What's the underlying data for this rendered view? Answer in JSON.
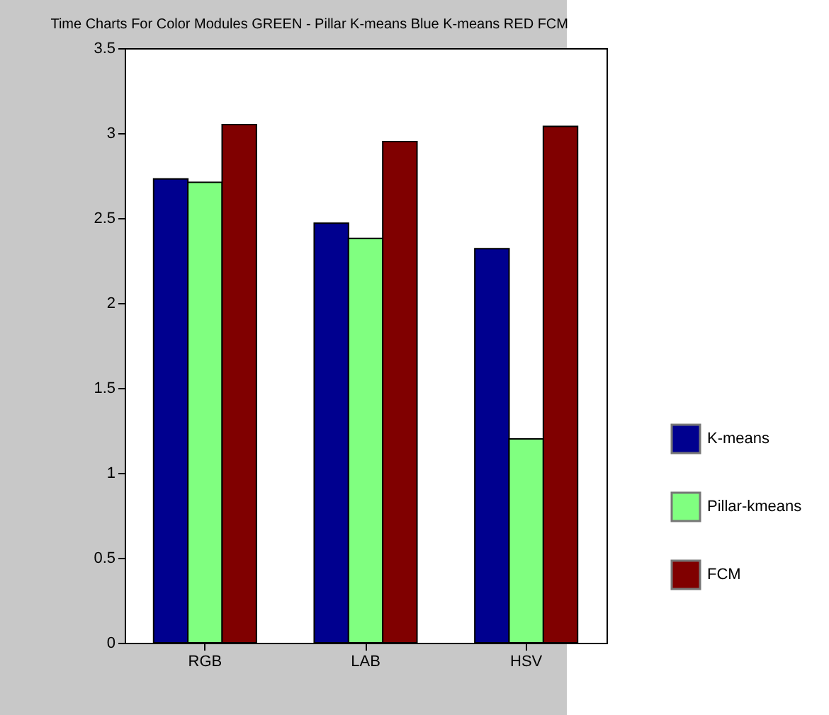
{
  "chart_data": {
    "type": "bar",
    "title": "Time Charts For Color Modules GREEN - Pillar K-means Blue K-means RED FCM",
    "categories": [
      "RGB",
      "LAB",
      "HSV"
    ],
    "series": [
      {
        "name": "K-means",
        "color": "#00008f",
        "values": [
          2.73,
          2.47,
          2.32
        ]
      },
      {
        "name": "Pillar-kmeans",
        "color": "#80ff80",
        "values": [
          2.71,
          2.38,
          1.2
        ]
      },
      {
        "name": "FCM",
        "color": "#800000",
        "values": [
          3.05,
          2.95,
          3.04
        ]
      }
    ],
    "ylim": [
      0,
      3.5
    ],
    "yticks": [
      0,
      0.5,
      1,
      1.5,
      2,
      2.5,
      3,
      3.5
    ],
    "grid": false,
    "legend": "right"
  }
}
